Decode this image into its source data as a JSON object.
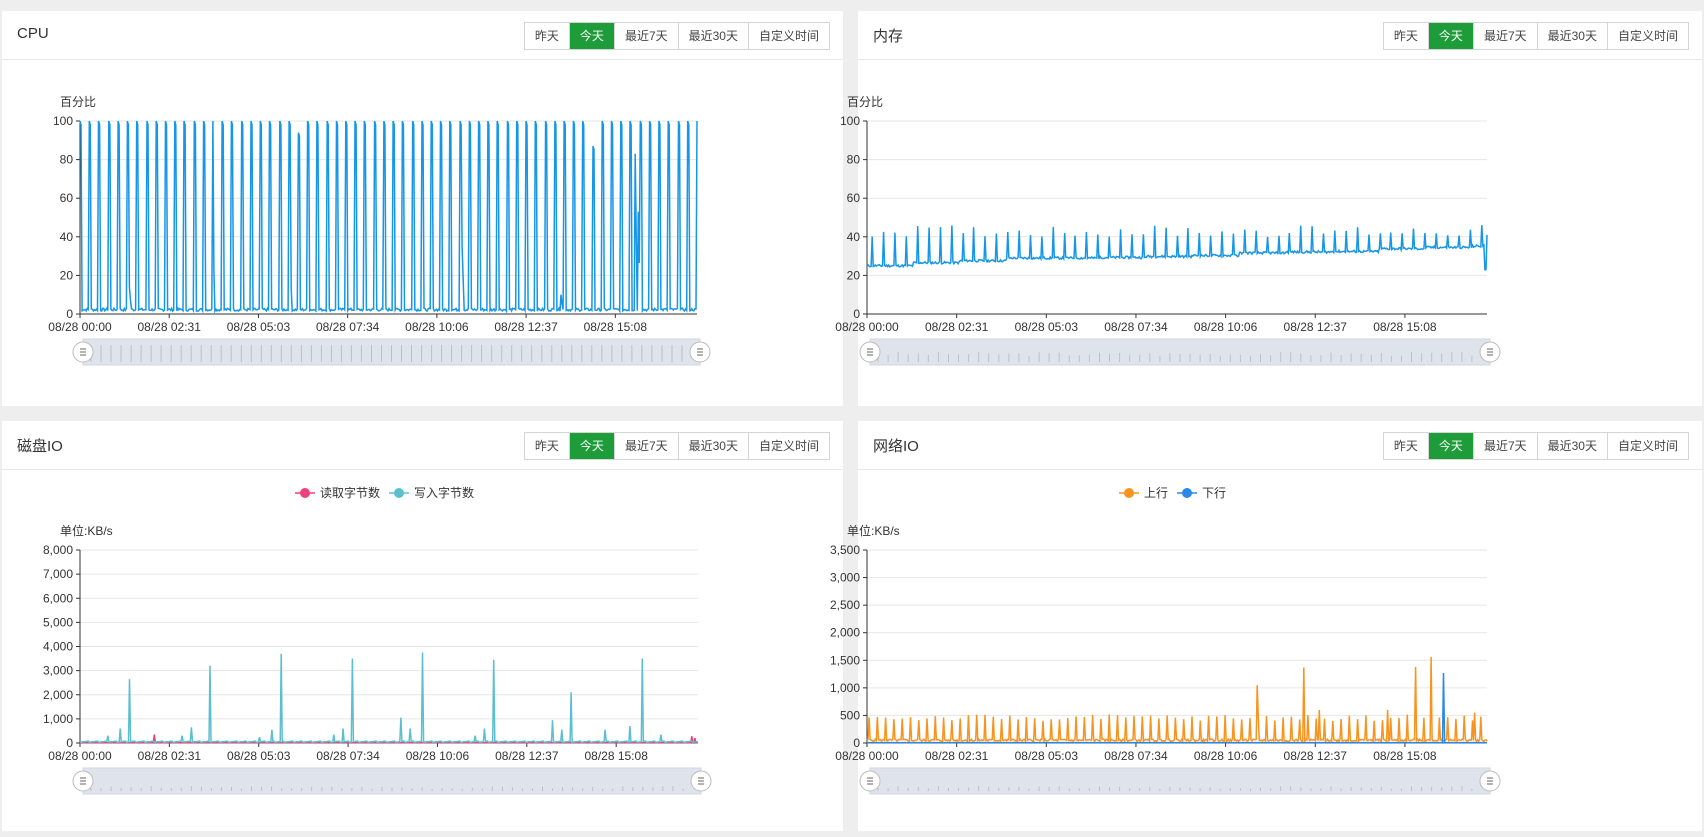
{
  "tabs": [
    "昨天",
    "今天",
    "最近7天",
    "最近30天",
    "自定义时间"
  ],
  "active_tab": "今天",
  "colors": {
    "active_tab": "#1f9c3a",
    "cpu_line": "#1596e6",
    "mem_line": "#1596e6",
    "disk_read": "#ec407a",
    "disk_write": "#5bbfcf",
    "net_up": "#f7931e",
    "net_down": "#2a88e8",
    "grid": "#e6e6e6",
    "slider_bg": "#dfe4ec"
  },
  "x_ticks": [
    "08/28 00:00",
    "08/28 02:31",
    "08/28 05:03",
    "08/28 07:34",
    "08/28 10:06",
    "08/28 12:37",
    "08/28 15:08"
  ],
  "panels": {
    "cpu": {
      "title": "CPU",
      "ylabel": "百分比"
    },
    "mem": {
      "title": "内存",
      "ylabel": "百分比"
    },
    "disk": {
      "title": "磁盘IO",
      "ylabel": "单位:KB/s",
      "legend": [
        "读取字节数",
        "写入字节数"
      ]
    },
    "net": {
      "title": "网络IO",
      "ylabel": "单位:KB/s",
      "legend": [
        "上行",
        "下行"
      ]
    }
  },
  "chart_data": [
    {
      "id": "cpu",
      "type": "line",
      "title": "CPU",
      "ylabel": "百分比",
      "ylim": [
        0,
        100
      ],
      "yticks": [
        0,
        20,
        40,
        60,
        80,
        100
      ],
      "x_ticks": [
        "08/28 00:00",
        "08/28 02:31",
        "08/28 05:03",
        "08/28 07:34",
        "08/28 10:06",
        "08/28 12:37",
        "08/28 15:08"
      ],
      "grid": true,
      "legend": "none",
      "baseline": 1.5,
      "spike_count": 66,
      "spike_peaks": [
        100,
        100,
        100,
        100,
        100,
        100,
        100,
        100,
        100,
        100,
        100,
        100,
        100,
        100,
        100,
        100,
        100,
        100,
        100,
        100,
        100,
        100,
        100,
        94,
        100,
        100,
        100,
        100,
        100,
        100,
        100,
        100,
        100,
        100,
        100,
        100,
        100,
        100,
        100,
        100,
        100,
        100,
        100,
        100,
        100,
        100,
        100,
        100,
        100,
        100,
        100,
        100,
        100,
        100,
        87,
        100,
        100,
        100,
        100,
        100,
        100,
        100,
        100,
        100,
        100,
        100
      ],
      "bumps": [
        {
          "x": 0.08,
          "v": 14
        },
        {
          "x": 0.215,
          "v": 45
        },
        {
          "x": 0.34,
          "v": 26
        },
        {
          "x": 0.62,
          "v": 35
        },
        {
          "x": 0.78,
          "v": 10
        },
        {
          "x": 0.905,
          "v": 53
        },
        {
          "x": 0.9,
          "v": 83
        }
      ]
    },
    {
      "id": "mem",
      "type": "line",
      "title": "内存",
      "ylabel": "百分比",
      "ylim": [
        0,
        100
      ],
      "yticks": [
        0,
        20,
        40,
        60,
        80,
        100
      ],
      "x_ticks": [
        "08/28 00:00",
        "08/28 02:31",
        "08/28 05:03",
        "08/28 07:34",
        "08/28 10:06",
        "08/28 12:37",
        "08/28 15:08"
      ],
      "grid": true,
      "legend": "none",
      "level_start": 25,
      "level_end": 33,
      "spike_count": 55,
      "spike_top": 43
    },
    {
      "id": "disk",
      "type": "line",
      "title": "磁盘IO",
      "ylabel": "单位:KB/s",
      "ylim": [
        0,
        8000
      ],
      "yticks": [
        0,
        1000,
        2000,
        3000,
        4000,
        5000,
        6000,
        7000,
        8000
      ],
      "x_ticks": [
        "08/28 00:00",
        "08/28 02:31",
        "08/28 05:03",
        "08/28 07:34",
        "08/28 10:06",
        "08/28 12:37",
        "08/28 15:08"
      ],
      "grid": true,
      "legend": "top-center",
      "series": [
        {
          "name": "读取字节数",
          "spikes": [
            {
              "x": 0.12,
              "v": 350
            },
            {
              "x": 0.99,
              "v": 280
            },
            {
              "x": 0.995,
              "v": 200
            }
          ]
        },
        {
          "name": "写入字节数",
          "spikes": [
            {
              "x": 0.045,
              "v": 300
            },
            {
              "x": 0.065,
              "v": 600
            },
            {
              "x": 0.08,
              "v": 2650
            },
            {
              "x": 0.165,
              "v": 300
            },
            {
              "x": 0.18,
              "v": 650
            },
            {
              "x": 0.21,
              "v": 3200
            },
            {
              "x": 0.29,
              "v": 250
            },
            {
              "x": 0.31,
              "v": 550
            },
            {
              "x": 0.325,
              "v": 3700
            },
            {
              "x": 0.41,
              "v": 350
            },
            {
              "x": 0.425,
              "v": 600
            },
            {
              "x": 0.44,
              "v": 3500
            },
            {
              "x": 0.52,
              "v": 1050
            },
            {
              "x": 0.535,
              "v": 600
            },
            {
              "x": 0.555,
              "v": 3750
            },
            {
              "x": 0.64,
              "v": 300
            },
            {
              "x": 0.655,
              "v": 600
            },
            {
              "x": 0.67,
              "v": 3450
            },
            {
              "x": 0.765,
              "v": 950
            },
            {
              "x": 0.78,
              "v": 550
            },
            {
              "x": 0.795,
              "v": 2100
            },
            {
              "x": 0.85,
              "v": 550
            },
            {
              "x": 0.89,
              "v": 700
            },
            {
              "x": 0.91,
              "v": 3500
            },
            {
              "x": 0.94,
              "v": 350
            }
          ]
        }
      ]
    },
    {
      "id": "net",
      "type": "line",
      "title": "网络IO",
      "ylabel": "单位:KB/s",
      "ylim": [
        0,
        3500
      ],
      "yticks": [
        0,
        500,
        1000,
        1500,
        2000,
        2500,
        3000,
        3500
      ],
      "x_ticks": [
        "08/28 00:00",
        "08/28 02:31",
        "08/28 05:03",
        "08/28 07:34",
        "08/28 10:06",
        "08/28 12:37",
        "08/28 15:08"
      ],
      "grid": true,
      "legend": "top-center",
      "series": [
        {
          "name": "上行",
          "spike_count": 75,
          "typical": 470,
          "peaks": [
            {
              "x": 0.63,
              "v": 1050
            },
            {
              "x": 0.705,
              "v": 1370
            },
            {
              "x": 0.73,
              "v": 600
            },
            {
              "x": 0.84,
              "v": 600
            },
            {
              "x": 0.885,
              "v": 1380
            },
            {
              "x": 0.91,
              "v": 1560
            },
            {
              "x": 0.98,
              "v": 550
            }
          ]
        },
        {
          "name": "下行",
          "spikes": [
            {
              "x": 0.93,
              "v": 1270
            }
          ]
        }
      ]
    }
  ]
}
